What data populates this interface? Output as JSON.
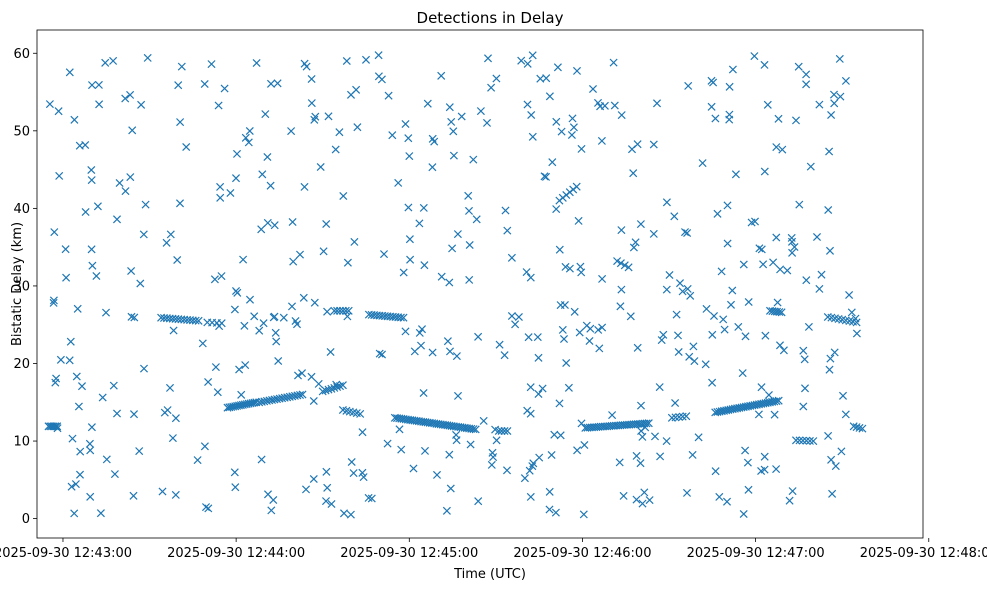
{
  "chart_data": {
    "type": "scatter",
    "title": "Detections in Delay",
    "xlabel": "Time (UTC)",
    "ylabel": "Bistatic Delay (km)",
    "x_unit": "datetime (UTC)",
    "xlim": [
      "2025-09-30 12:42:51",
      "2025-09-30 12:47:58"
    ],
    "ylim": [
      -2.5,
      63
    ],
    "xticks": [
      "2025-09-30 12:43:00",
      "2025-09-30 12:44:00",
      "2025-09-30 12:45:00",
      "2025-09-30 12:46:00",
      "2025-09-30 12:47:00",
      "2025-09-30 12:48:00"
    ],
    "yticks": [
      0,
      10,
      20,
      30,
      40,
      50,
      60
    ],
    "marker": "x",
    "color": "#1f77b4",
    "grid": false,
    "legend": "none",
    "tracks": [
      {
        "x_start": "2025-09-30 12:42:55",
        "x_end": "2025-09-30 12:42:58",
        "y_start": 11.9,
        "y_end": 11.9,
        "count": 6
      },
      {
        "x_start": "2025-09-30 12:43:34",
        "x_end": "2025-09-30 12:43:47",
        "y_start": 25.9,
        "y_end": 25.5,
        "count": 14
      },
      {
        "x_start": "2025-09-30 12:43:50",
        "x_end": "2025-09-30 12:43:55",
        "y_start": 25.3,
        "y_end": 25.2,
        "count": 4
      },
      {
        "x_start": "2025-09-30 12:43:57",
        "x_end": "2025-09-30 12:44:07",
        "y_start": 14.3,
        "y_end": 15.0,
        "count": 16
      },
      {
        "x_start": "2025-09-30 12:44:08",
        "x_end": "2025-09-30 12:44:23",
        "y_start": 15.0,
        "y_end": 16.0,
        "count": 18
      },
      {
        "x_start": "2025-09-30 12:44:30",
        "x_end": "2025-09-30 12:44:37",
        "y_start": 16.4,
        "y_end": 17.2,
        "count": 8
      },
      {
        "x_start": "2025-09-30 12:44:34",
        "x_end": "2025-09-30 12:44:39",
        "y_start": 26.8,
        "y_end": 26.8,
        "count": 6
      },
      {
        "x_start": "2025-09-30 12:44:37",
        "x_end": "2025-09-30 12:44:43",
        "y_start": 14.0,
        "y_end": 13.5,
        "count": 6
      },
      {
        "x_start": "2025-09-30 12:44:46",
        "x_end": "2025-09-30 12:44:58",
        "y_start": 26.3,
        "y_end": 25.9,
        "count": 14
      },
      {
        "x_start": "2025-09-30 12:44:55",
        "x_end": "2025-09-30 12:45:23",
        "y_start": 13.0,
        "y_end": 11.5,
        "count": 38
      },
      {
        "x_start": "2025-09-30 12:45:31",
        "x_end": "2025-09-30 12:45:34",
        "y_start": 11.3,
        "y_end": 11.3,
        "count": 4
      },
      {
        "x_start": "2025-09-30 12:46:01",
        "x_end": "2025-09-30 12:46:23",
        "y_start": 11.7,
        "y_end": 12.3,
        "count": 30
      },
      {
        "x_start": "2025-09-30 12:46:31",
        "x_end": "2025-09-30 12:46:36",
        "y_start": 13.0,
        "y_end": 13.2,
        "count": 5
      },
      {
        "x_start": "2025-09-30 12:46:46",
        "x_end": "2025-09-30 12:47:08",
        "y_start": 13.7,
        "y_end": 15.2,
        "count": 30
      },
      {
        "x_start": "2025-09-30 12:47:05",
        "x_end": "2025-09-30 12:47:09",
        "y_start": 26.8,
        "y_end": 26.6,
        "count": 6
      },
      {
        "x_start": "2025-09-30 12:47:14",
        "x_end": "2025-09-30 12:47:20",
        "y_start": 10.1,
        "y_end": 10.0,
        "count": 6
      },
      {
        "x_start": "2025-09-30 12:47:25",
        "x_end": "2025-09-30 12:47:35",
        "y_start": 26.0,
        "y_end": 25.3,
        "count": 9
      },
      {
        "x_start": "2025-09-30 12:47:34",
        "x_end": "2025-09-30 12:47:37",
        "y_start": 11.9,
        "y_end": 11.6,
        "count": 4
      },
      {
        "x_start": "2025-09-30 12:45:52",
        "x_end": "2025-09-30 12:45:58",
        "y_start": 41.0,
        "y_end": 42.8,
        "count": 6
      },
      {
        "x_start": "2025-09-30 12:46:12",
        "x_end": "2025-09-30 12:46:16",
        "y_start": 33.2,
        "y_end": 32.4,
        "count": 4
      }
    ],
    "scattered_detections": {
      "x_range": [
        "2025-09-30 12:42:55",
        "2025-09-30 12:47:36"
      ],
      "y_range": [
        0.5,
        59.8
      ],
      "count": 520,
      "seed": 20250930
    }
  }
}
